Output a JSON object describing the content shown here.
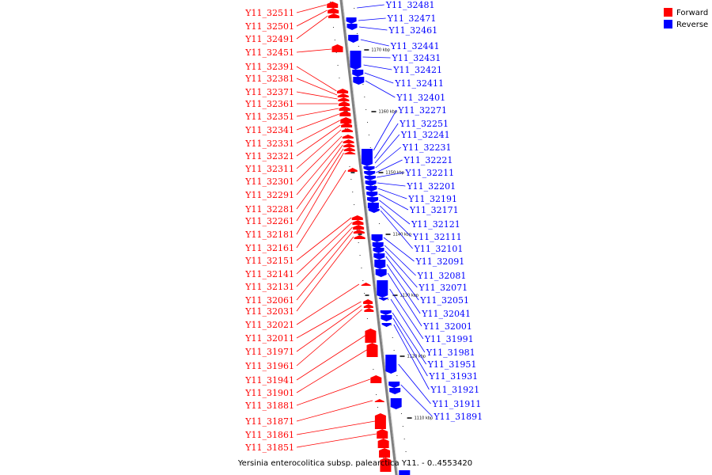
{
  "caption": "Yersinia enterocolitica subsp. palearctica Y11. - 0..4553420",
  "legend": [
    {
      "label": "Forward",
      "color": "#ff0000"
    },
    {
      "label": "Reverse",
      "color": "#0000ff"
    }
  ],
  "colors": {
    "forward": "#ff0000",
    "reverse": "#0000ff",
    "backbone": "#808080"
  },
  "scale_ticks": [
    "1170 kbp",
    "1160 kbp",
    "1150 kbp",
    "1140 kbp",
    "1130 kbp",
    "1120 kbp",
    "1110 kbp"
  ],
  "forward_genes": [
    "Y11_32511",
    "Y11_32501",
    "Y11_32491",
    "Y11_32451",
    "Y11_32391",
    "Y11_32381",
    "Y11_32371",
    "Y11_32361",
    "Y11_32351",
    "Y11_32341",
    "Y11_32331",
    "Y11_32321",
    "Y11_32311",
    "Y11_32301",
    "Y11_32291",
    "Y11_32281",
    "Y11_32261",
    "Y11_32181",
    "Y11_32161",
    "Y11_32151",
    "Y11_32141",
    "Y11_32131",
    "Y11_32061",
    "Y11_32031",
    "Y11_32021",
    "Y11_32011",
    "Y11_31971",
    "Y11_31961",
    "Y11_31941",
    "Y11_31901",
    "Y11_31881",
    "Y11_31871",
    "Y11_31861",
    "Y11_31851"
  ],
  "reverse_genes": [
    "Y11_32481",
    "Y11_32471",
    "Y11_32461",
    "Y11_32441",
    "Y11_32431",
    "Y11_32421",
    "Y11_32411",
    "Y11_32401",
    "Y11_32271",
    "Y11_32251",
    "Y11_32241",
    "Y11_32231",
    "Y11_32221",
    "Y11_32211",
    "Y11_32201",
    "Y11_32191",
    "Y11_32171",
    "Y11_32121",
    "Y11_32111",
    "Y11_32101",
    "Y11_32091",
    "Y11_32081",
    "Y11_32071",
    "Y11_32051",
    "Y11_32041",
    "Y11_32001",
    "Y11_31991",
    "Y11_31981",
    "Y11_31951",
    "Y11_31931",
    "Y11_31921",
    "Y11_31911",
    "Y11_31891"
  ]
}
